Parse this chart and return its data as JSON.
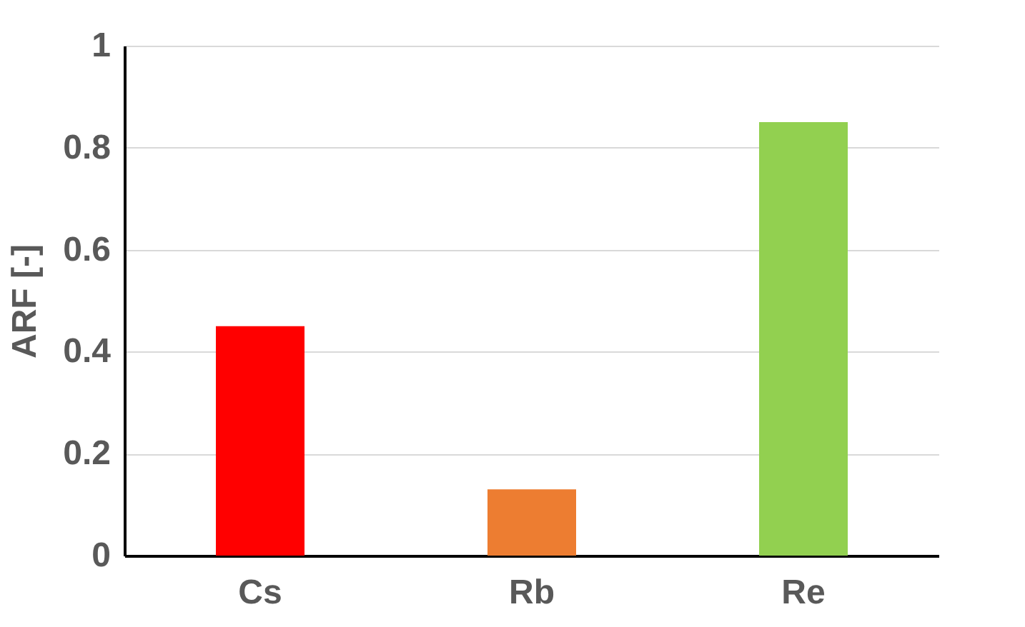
{
  "chart_data": {
    "type": "bar",
    "ylabel": "ARF [-]",
    "categories": [
      "Cs",
      "Rb",
      "Re"
    ],
    "values": [
      0.45,
      0.13,
      0.85
    ],
    "colors": [
      "#ff0000",
      "#ed7d31",
      "#92d050"
    ],
    "ylim": [
      0,
      1
    ],
    "yticks": [
      0,
      0.2,
      0.4,
      0.6,
      0.8,
      1
    ],
    "grid": "y",
    "legend": false
  }
}
